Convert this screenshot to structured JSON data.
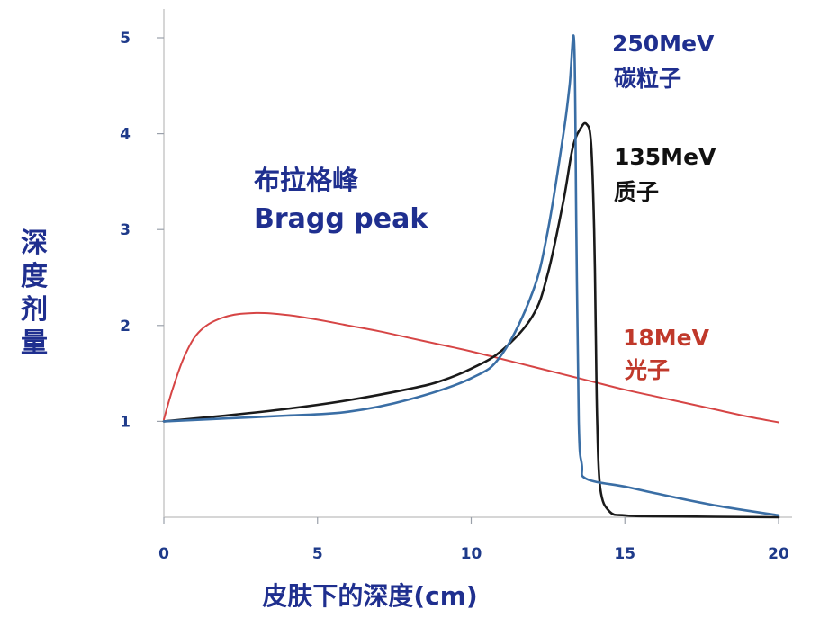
{
  "chart_data": {
    "type": "line",
    "title": "",
    "xlabel": "皮肤下的深度(cm)",
    "ylabel": "深度剂量",
    "xlim": [
      0,
      20
    ],
    "ylim": [
      0,
      5
    ],
    "x_ticks": [
      0,
      5,
      10,
      15,
      20
    ],
    "y_ticks": [
      1,
      2,
      3,
      4,
      5
    ],
    "grid": false,
    "series": [
      {
        "name": "18MeV 光子",
        "color": "#d64545",
        "x": [
          0,
          0.3,
          0.7,
          1.2,
          2,
          3,
          4,
          5,
          6,
          7,
          8,
          9,
          10,
          11,
          12,
          13,
          14,
          15,
          16,
          17,
          18,
          19,
          20
        ],
        "y": [
          1.02,
          1.35,
          1.7,
          1.95,
          2.09,
          2.13,
          2.11,
          2.06,
          2.0,
          1.94,
          1.87,
          1.8,
          1.73,
          1.65,
          1.57,
          1.49,
          1.41,
          1.33,
          1.26,
          1.19,
          1.12,
          1.05,
          0.99
        ]
      },
      {
        "name": "135MeV 质子",
        "color": "#1a1a1a",
        "x": [
          0,
          2,
          4,
          6,
          8,
          9,
          10,
          11,
          12,
          12.5,
          13,
          13.3,
          13.55,
          13.75,
          13.9,
          14.0,
          14.05,
          14.1,
          14.2,
          14.5,
          15,
          16,
          20
        ],
        "y": [
          1.0,
          1.06,
          1.13,
          1.22,
          1.34,
          1.42,
          1.55,
          1.74,
          2.1,
          2.55,
          3.3,
          3.85,
          4.05,
          4.1,
          3.9,
          3.0,
          2.0,
          1.0,
          0.3,
          0.06,
          0.02,
          0.01,
          0.0
        ]
      },
      {
        "name": "250MeV 碳粒子",
        "color": "#3a6ea5",
        "x": [
          0,
          2,
          4,
          6,
          8,
          10,
          11,
          12,
          12.5,
          13,
          13.2,
          13.35,
          13.42,
          13.5,
          13.6,
          13.75,
          15,
          16,
          18,
          20
        ],
        "y": [
          1.0,
          1.03,
          1.06,
          1.1,
          1.23,
          1.45,
          1.7,
          2.35,
          3.0,
          4.0,
          4.5,
          4.95,
          3.0,
          1.0,
          0.55,
          0.4,
          0.32,
          0.25,
          0.12,
          0.02
        ]
      }
    ],
    "annotations": [
      {
        "text": "布拉格峰",
        "color": "#1f2f8f"
      },
      {
        "text": "Bragg peak",
        "color": "#1f2f8f"
      },
      {
        "text": "250MeV",
        "color": "#1f2f8f"
      },
      {
        "text": "碳粒子",
        "color": "#1f2f8f"
      },
      {
        "text": "135MeV",
        "color": "#111111"
      },
      {
        "text": "质子",
        "color": "#111111"
      },
      {
        "text": "18MeV",
        "color": "#c0392b"
      },
      {
        "text": "光子",
        "color": "#c0392b"
      }
    ]
  }
}
